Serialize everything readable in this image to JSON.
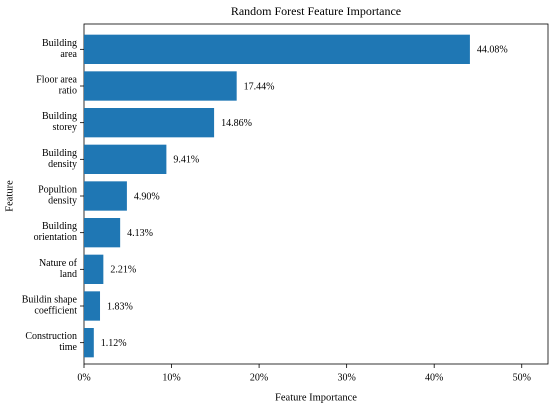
{
  "chart_data": {
    "type": "barh",
    "title": "Random Forest Feature Importance",
    "x_label": "Feature Importance",
    "y_label": "Feature",
    "categories": [
      "Building\narea",
      "Floor area\nratio",
      "Building\nstorey",
      "Building\ndensity",
      "Popultion\ndensity",
      "Building\norientation",
      "Nature of\nland",
      "Buildin shape\ncoefficient",
      "Construction\ntime"
    ],
    "values": [
      44.08,
      17.44,
      14.86,
      9.41,
      4.9,
      4.13,
      2.21,
      1.83,
      1.12
    ],
    "value_labels": [
      "44.08%",
      "17.44%",
      "14.86%",
      "9.41%",
      "4.90%",
      "4.13%",
      "2.21%",
      "1.83%",
      "1.12%"
    ],
    "color": "#1f77b4",
    "xlim": [
      0,
      53
    ],
    "xticks": [
      {
        "value": 0,
        "label": "0%"
      },
      {
        "value": 10,
        "label": "10%"
      },
      {
        "value": 20,
        "label": "20%"
      },
      {
        "value": 30,
        "label": "30%"
      },
      {
        "value": 40,
        "label": "40%"
      },
      {
        "value": 50,
        "label": "50%"
      }
    ],
    "grid": false
  }
}
